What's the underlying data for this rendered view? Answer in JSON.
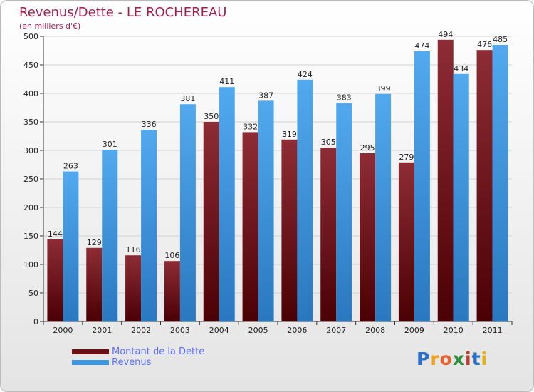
{
  "header": {
    "title": "Revenus/Dette - LE ROCHEREAU",
    "subtitle": "(en milliers d'€)"
  },
  "chart_data": {
    "type": "bar",
    "title": "Revenus/Dette - LE ROCHEREAU",
    "subtitle": "(en milliers d'€)",
    "categories": [
      "2000",
      "2001",
      "2002",
      "2003",
      "2004",
      "2005",
      "2006",
      "2007",
      "2008",
      "2009",
      "2010",
      "2011"
    ],
    "series": [
      {
        "name": "Montant de la Dette",
        "color": "#6b0d12",
        "values": [
          144,
          129,
          116,
          106,
          350,
          332,
          319,
          305,
          295,
          279,
          494,
          476
        ]
      },
      {
        "name": "Revenus",
        "color": "#3d95de",
        "values": [
          263,
          301,
          336,
          381,
          411,
          387,
          424,
          383,
          399,
          474,
          434,
          485
        ]
      }
    ],
    "ylim": [
      0,
      500
    ],
    "yticks": [
      0,
      50,
      100,
      150,
      200,
      250,
      300,
      350,
      400,
      450,
      500
    ],
    "grid": true,
    "legend_position": "bottom-left"
  },
  "legend": {
    "items": [
      {
        "label": "Montant de la Dette",
        "color": "#6b0d12"
      },
      {
        "label": "Revenus",
        "color": "#3d95de"
      }
    ]
  },
  "logo": {
    "letters": [
      "P",
      "r",
      "o",
      "x",
      "i",
      "t",
      "i"
    ],
    "colors": [
      "#2a6fc9",
      "#f0a21a",
      "#e8632c",
      "#2f8f3c",
      "#c0392b",
      "#2a6fc9",
      "#e0b21a"
    ]
  }
}
